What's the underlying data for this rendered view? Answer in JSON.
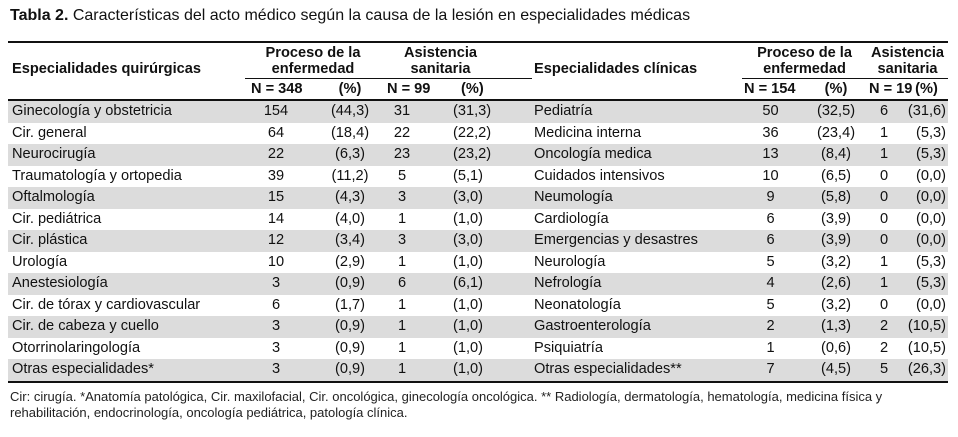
{
  "title": {
    "label": "Tabla 2.",
    "text": "Características del acto médico según la causa de la lesión en especialidades médicas"
  },
  "header": {
    "left_spec": "Especialidades quirúrgicas",
    "right_spec": "Especialidades clínicas",
    "group_proc_l1": "Proceso de la",
    "group_proc_l2": "enfermedad",
    "group_asis_l1": "Asistencia",
    "group_asis_l2": "sanitaria",
    "left_proc_n": "N = 348",
    "left_asis_n": "N = 99",
    "right_proc_n": "N = 154",
    "right_asis_n": "N = 19",
    "pct": "(%)"
  },
  "rows": [
    {
      "l_name": "Ginecología y obstetricia",
      "l_pn": "154",
      "l_pp": "(44,3)",
      "l_an": "31",
      "l_ap": "(31,3)",
      "r_name": "Pediatría",
      "r_pn": "50",
      "r_pp": "(32,5)",
      "r_an": "6",
      "r_ap": "(31,6)"
    },
    {
      "l_name": "Cir. general",
      "l_pn": "64",
      "l_pp": "(18,4)",
      "l_an": "22",
      "l_ap": "(22,2)",
      "r_name": "Medicina interna",
      "r_pn": "36",
      "r_pp": "(23,4)",
      "r_an": "1",
      "r_ap": "(5,3)"
    },
    {
      "l_name": "Neurocirugía",
      "l_pn": "22",
      "l_pp": "(6,3)",
      "l_an": "23",
      "l_ap": "(23,2)",
      "r_name": "Oncología medica",
      "r_pn": "13",
      "r_pp": "(8,4)",
      "r_an": "1",
      "r_ap": "(5,3)"
    },
    {
      "l_name": "Traumatología y ortopedia",
      "l_pn": "39",
      "l_pp": "(11,2)",
      "l_an": "5",
      "l_ap": "(5,1)",
      "r_name": "Cuidados intensivos",
      "r_pn": "10",
      "r_pp": "(6,5)",
      "r_an": "0",
      "r_ap": "(0,0)"
    },
    {
      "l_name": "Oftalmología",
      "l_pn": "15",
      "l_pp": "(4,3)",
      "l_an": "3",
      "l_ap": "(3,0)",
      "r_name": "Neumología",
      "r_pn": "9",
      "r_pp": "(5,8)",
      "r_an": "0",
      "r_ap": "(0,0)"
    },
    {
      "l_name": "Cir. pediátrica",
      "l_pn": "14",
      "l_pp": "(4,0)",
      "l_an": "1",
      "l_ap": "(1,0)",
      "r_name": "Cardiología",
      "r_pn": "6",
      "r_pp": "(3,9)",
      "r_an": "0",
      "r_ap": "(0,0)"
    },
    {
      "l_name": "Cir. plástica",
      "l_pn": "12",
      "l_pp": "(3,4)",
      "l_an": "3",
      "l_ap": "(3,0)",
      "r_name": "Emergencias y desastres",
      "r_pn": "6",
      "r_pp": "(3,9)",
      "r_an": "0",
      "r_ap": "(0,0)"
    },
    {
      "l_name": "Urología",
      "l_pn": "10",
      "l_pp": "(2,9)",
      "l_an": "1",
      "l_ap": "(1,0)",
      "r_name": "Neurología",
      "r_pn": "5",
      "r_pp": "(3,2)",
      "r_an": "1",
      "r_ap": "(5,3)"
    },
    {
      "l_name": "Anestesiología",
      "l_pn": "3",
      "l_pp": "(0,9)",
      "l_an": "6",
      "l_ap": "(6,1)",
      "r_name": "Nefrología",
      "r_pn": "4",
      "r_pp": "(2,6)",
      "r_an": "1",
      "r_ap": "(5,3)"
    },
    {
      "l_name": "Cir. de tórax y cardiovascular",
      "l_pn": "6",
      "l_pp": "(1,7)",
      "l_an": "1",
      "l_ap": "(1,0)",
      "r_name": "Neonatología",
      "r_pn": "5",
      "r_pp": "(3,2)",
      "r_an": "0",
      "r_ap": "(0,0)"
    },
    {
      "l_name": "Cir. de cabeza y cuello",
      "l_pn": "3",
      "l_pp": "(0,9)",
      "l_an": "1",
      "l_ap": "(1,0)",
      "r_name": "Gastroenterología",
      "r_pn": "2",
      "r_pp": "(1,3)",
      "r_an": "2",
      "r_ap": "(10,5)"
    },
    {
      "l_name": "Otorrinolaringología",
      "l_pn": "3",
      "l_pp": "(0,9)",
      "l_an": "1",
      "l_ap": "(1,0)",
      "r_name": "Psiquiatría",
      "r_pn": "1",
      "r_pp": "(0,6)",
      "r_an": "2",
      "r_ap": "(10,5)"
    },
    {
      "l_name": "Otras especialidades*",
      "l_pn": "3",
      "l_pp": "(0,9)",
      "l_an": "1",
      "l_ap": "(1,0)",
      "r_name": "Otras especialidades**",
      "r_pn": "7",
      "r_pp": "(4,5)",
      "r_an": "5",
      "r_ap": "(26,3)"
    }
  ],
  "footnote": "Cir: cirugía. *Anatomía patológica, Cir. maxilofacial, Cir. oncológica, ginecología oncológica. ** Radiología, dermatología, hematología, medicina física y rehabilitación, endocrinología, oncología pediátrica, patología clínica."
}
